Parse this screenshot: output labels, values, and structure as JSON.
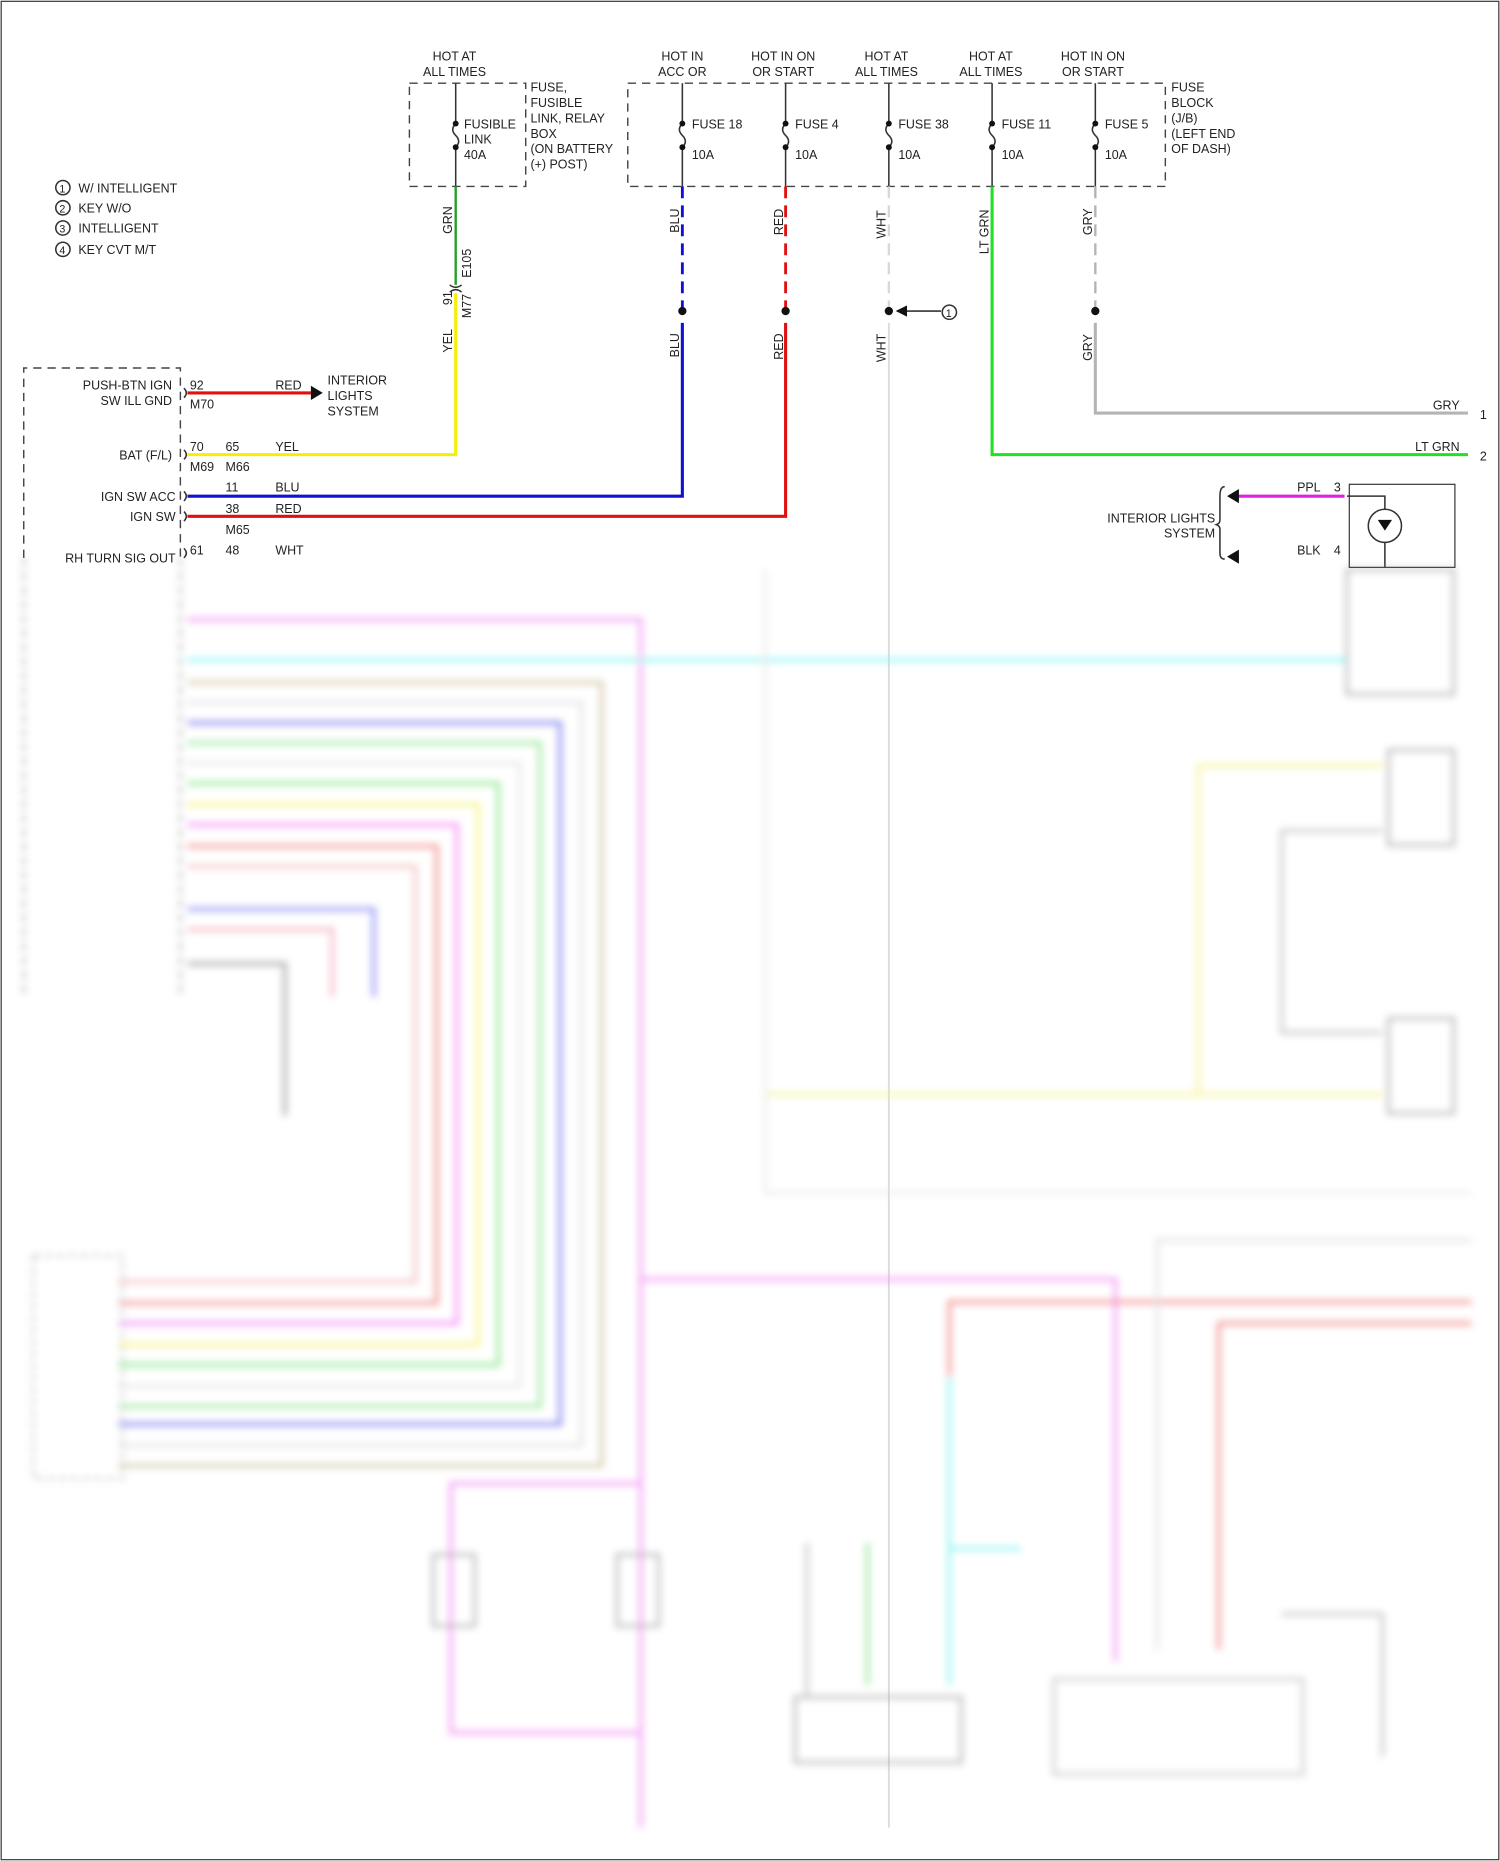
{
  "wire_colors": {
    "GRN": "#22a022",
    "YEL": "#f4f000",
    "BLU": "#1010d0",
    "RED": "#e01010",
    "WHT": "#d8d8d8",
    "LT GRN": "#22e022",
    "GRY": "#b4b4b4",
    "PPL": "#e020e0"
  },
  "legend": [
    {
      "num": "1",
      "text": "W/ INTELLIGENT"
    },
    {
      "num": "2",
      "text": "KEY W/O"
    },
    {
      "num": "3",
      "text": "INTELLIGENT"
    },
    {
      "num": "4",
      "text": "KEY CVT M/T"
    }
  ],
  "fusible_box": {
    "header": [
      "HOT AT",
      "ALL TIMES"
    ],
    "fuse": [
      "FUSIBLE",
      "LINK",
      "40A"
    ],
    "label": [
      "FUSE,",
      "FUSIBLE",
      "LINK, RELAY",
      "BOX",
      "(ON BATTERY",
      "(+) POST)"
    ]
  },
  "fuse_block": {
    "label": [
      "FUSE",
      "BLOCK",
      "(J/B)",
      "(LEFT END",
      "OF DASH)"
    ],
    "fuses": [
      {
        "header": [
          "HOT IN",
          "ACC OR"
        ],
        "name": "FUSE 18",
        "rating": "10A",
        "wire": "BLU"
      },
      {
        "header": [
          "HOT IN ON",
          "OR START"
        ],
        "name": "FUSE 4",
        "rating": "10A",
        "wire": "RED"
      },
      {
        "header": [
          "HOT AT",
          "ALL TIMES"
        ],
        "name": "FUSE 38",
        "rating": "10A",
        "wire": "WHT"
      },
      {
        "header": [
          "HOT AT",
          "ALL TIMES"
        ],
        "name": "FUSE 11",
        "rating": "10A",
        "wire": "LT GRN"
      },
      {
        "header": [
          "HOT IN ON",
          "OR START"
        ],
        "name": "FUSE 5",
        "rating": "10A",
        "wire": "GRY"
      }
    ]
  },
  "connectors": {
    "e105": "E105",
    "pin91": "91",
    "m77": "M77",
    "grn": "GRN",
    "yel": "YEL",
    "callout": "1"
  },
  "module": {
    "rows": [
      {
        "label": [
          "PUSH-BTN IGN",
          "SW ILL GND"
        ],
        "pins": [
          "92"
        ],
        "conns": [
          "M70"
        ],
        "wire": "RED"
      },
      {
        "label": [
          "BAT (F/L)"
        ],
        "pins": [
          "70",
          "65"
        ],
        "conns": [
          "M69",
          "M66"
        ],
        "wire": "YEL"
      },
      {
        "label": [
          "IGN SW ACC"
        ],
        "pins": [
          "11"
        ],
        "wire": "BLU"
      },
      {
        "label": [
          "IGN SW"
        ],
        "pins": [
          "38"
        ],
        "conns": [
          "M65"
        ],
        "wire": "RED"
      },
      {
        "label": [
          "RH TURN SIG OUT"
        ],
        "pins": [
          "61",
          "48"
        ],
        "wire": "WHT"
      }
    ],
    "interior_lights": [
      "INTERIOR",
      "LIGHTS",
      "SYSTEM"
    ]
  },
  "right_side": {
    "gry": "GRY",
    "gry_pin": "1",
    "ltgrn": "LT GRN",
    "ltgrn_pin": "2",
    "interior_lights": [
      "INTERIOR LIGHTS",
      "SYSTEM"
    ],
    "ppl": "PPL",
    "ppl_pin": "3",
    "blk": "BLK",
    "blk_pin": "4"
  }
}
